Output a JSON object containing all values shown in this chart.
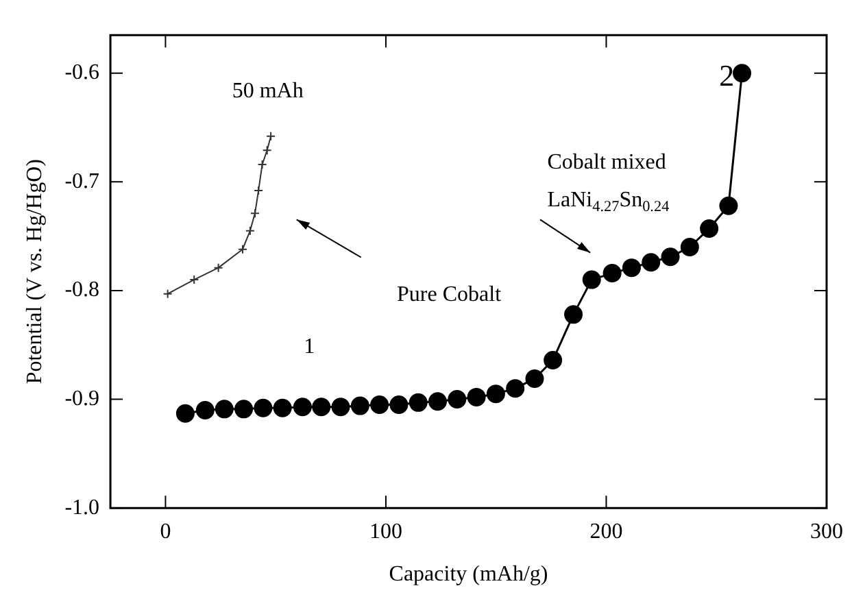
{
  "chart_data": {
    "type": "line",
    "xlabel": "Capacity (mAh/g)",
    "ylabel": "Potential (V vs. Hg/HgO)",
    "xlim": [
      -25,
      300
    ],
    "xticks": [
      0,
      100,
      200,
      300
    ],
    "ylim": [
      -1.0,
      -0.565
    ],
    "yticks": [
      {
        "value": -1.0,
        "label": "-1.0"
      },
      -0.9,
      -0.8,
      -0.7,
      -0.6
    ],
    "grid": false,
    "legend": false,
    "series": [
      {
        "color": "#000000",
        "marker": "circle",
        "x": [
          9,
          18,
          26.7,
          35.5,
          44.3,
          53.1,
          62.2,
          70.7,
          79.5,
          88.3,
          97.1,
          105.9,
          114.7,
          123.5,
          132.3,
          141.1,
          149.9,
          158.7,
          167.5,
          175.8,
          185.1,
          193.4,
          202.7,
          211.5,
          220.3,
          229.1,
          237.9,
          246.7,
          255.5,
          261.6
        ],
        "values": [
          -0.913,
          -0.91,
          -0.909,
          -0.909,
          -0.908,
          -0.908,
          -0.907,
          -0.907,
          -0.907,
          -0.906,
          -0.905,
          -0.905,
          -0.903,
          -0.902,
          -0.9,
          -0.898,
          -0.895,
          -0.89,
          -0.881,
          -0.864,
          -0.822,
          -0.79,
          -0.784,
          -0.779,
          -0.774,
          -0.769,
          -0.76,
          -0.743,
          -0.722,
          -0.6
        ]
      },
      {
        "color": "#333333",
        "marker": "cross",
        "x": [
          1,
          13,
          24,
          35,
          38.4,
          40.6,
          42.2,
          43.9,
          46.1,
          47.8
        ],
        "values": [
          -0.803,
          -0.79,
          -0.779,
          -0.762,
          -0.745,
          -0.729,
          -0.708,
          -0.684,
          -0.671,
          -0.658
        ]
      }
    ],
    "annotations": [
      "50 mAh",
      "Pure Cobalt",
      "Cobalt mixed",
      "LaNi$_{4.27}$Sn$_{0.24}$",
      "1",
      "2"
    ]
  }
}
